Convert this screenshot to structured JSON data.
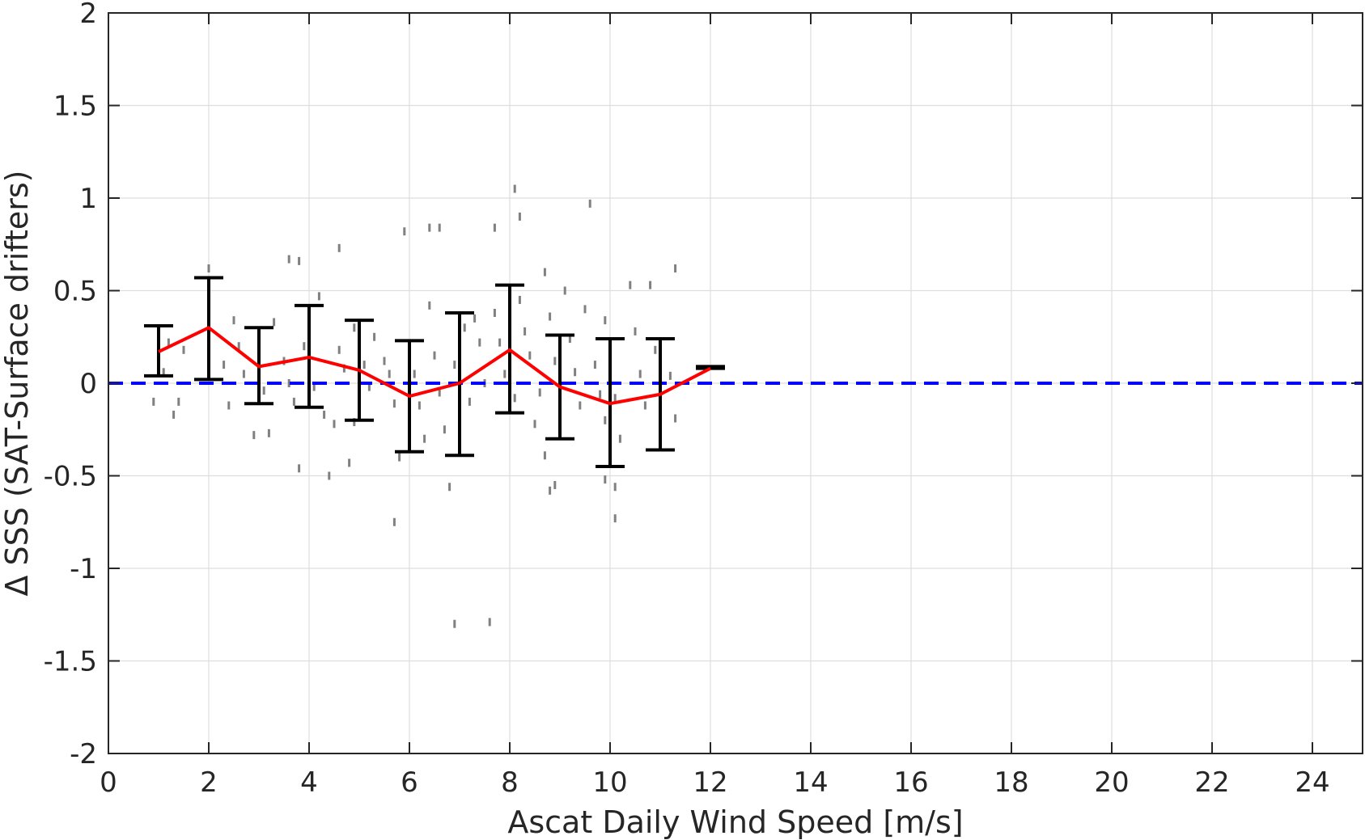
{
  "chart_data": {
    "type": "scatter",
    "title": "",
    "xlabel": "Ascat Daily Wind Speed [m/s]",
    "ylabel": "Δ SSS (SAT-Surface drifters)",
    "xlim": [
      0,
      25
    ],
    "ylim": [
      -2,
      2
    ],
    "xticks": [
      0,
      2,
      4,
      6,
      8,
      10,
      12,
      14,
      16,
      18,
      20,
      22,
      24
    ],
    "xtick_labels": [
      "0",
      "2",
      "4",
      "6",
      "8",
      "10",
      "12",
      "14",
      "16",
      "18",
      "20",
      "22",
      "24"
    ],
    "yticks": [
      -2,
      -1.5,
      -1,
      -0.5,
      0,
      0.5,
      1,
      1.5,
      2
    ],
    "ytick_labels": [
      "-2",
      "-1.5",
      "-1",
      "-0.5",
      "0",
      "0.5",
      "1",
      "1.5",
      "2"
    ],
    "grid": true,
    "legend": "none",
    "colors": {
      "scatter": "#808080",
      "mean_line": "#ff0000",
      "error_bars": "#000000",
      "zero_line": "#0000ff",
      "grid": "#dedede",
      "axes": "#262626"
    },
    "reference_line": {
      "y": 0,
      "style": "dashed"
    },
    "binned_mean": {
      "x": [
        1,
        2,
        3,
        4,
        5,
        6,
        7,
        8,
        9,
        10,
        11,
        12
      ],
      "y": [
        0.17,
        0.3,
        0.09,
        0.14,
        0.07,
        -0.07,
        0.0,
        0.18,
        -0.02,
        -0.11,
        -0.06,
        0.08
      ],
      "lower": [
        0.04,
        0.02,
        -0.11,
        -0.13,
        -0.2,
        -0.37,
        -0.39,
        -0.16,
        -0.3,
        -0.45,
        -0.36,
        0.08
      ],
      "upper": [
        0.31,
        0.57,
        0.3,
        0.42,
        0.34,
        0.23,
        0.38,
        0.53,
        0.26,
        0.24,
        0.24,
        0.09
      ]
    },
    "scatter_points": [
      [
        0.9,
        -0.1
      ],
      [
        1.3,
        -0.17
      ],
      [
        1.4,
        -0.1
      ],
      [
        1.5,
        0.18
      ],
      [
        1.2,
        0.22
      ],
      [
        1.1,
        0.06
      ],
      [
        2.0,
        0.62
      ],
      [
        2.5,
        0.34
      ],
      [
        2.6,
        0.2
      ],
      [
        2.4,
        -0.12
      ],
      [
        2.3,
        0.1
      ],
      [
        2.7,
        0.05
      ],
      [
        3.0,
        0.24
      ],
      [
        3.1,
        -0.04
      ],
      [
        3.2,
        -0.27
      ],
      [
        2.9,
        -0.28
      ],
      [
        3.3,
        0.33
      ],
      [
        3.5,
        0.12
      ],
      [
        3.6,
        0.0
      ],
      [
        3.7,
        -0.1
      ],
      [
        3.6,
        0.67
      ],
      [
        3.8,
        0.66
      ],
      [
        4.2,
        0.47
      ],
      [
        4.0,
        0.38
      ],
      [
        3.9,
        0.2
      ],
      [
        4.1,
        -0.02
      ],
      [
        4.3,
        -0.17
      ],
      [
        4.5,
        -0.22
      ],
      [
        3.8,
        -0.46
      ],
      [
        4.4,
        -0.5
      ],
      [
        4.6,
        0.18
      ],
      [
        4.7,
        0.08
      ],
      [
        4.6,
        0.73
      ],
      [
        4.9,
        0.3
      ],
      [
        5.1,
        0.1
      ],
      [
        5.2,
        -0.02
      ],
      [
        4.9,
        -0.21
      ],
      [
        4.8,
        -0.43
      ],
      [
        5.3,
        0.25
      ],
      [
        5.5,
        0.12
      ],
      [
        5.6,
        0.05
      ],
      [
        5.7,
        -0.11
      ],
      [
        5.7,
        -0.75
      ],
      [
        5.9,
        0.82
      ],
      [
        6.0,
        0.2
      ],
      [
        6.1,
        0.05
      ],
      [
        6.2,
        -0.12
      ],
      [
        6.3,
        -0.3
      ],
      [
        5.8,
        -0.4
      ],
      [
        6.4,
        0.42
      ],
      [
        6.5,
        0.15
      ],
      [
        6.6,
        -0.05
      ],
      [
        6.7,
        -0.25
      ],
      [
        6.4,
        0.84
      ],
      [
        6.6,
        0.84
      ],
      [
        6.8,
        -0.56
      ],
      [
        6.9,
        0.1
      ],
      [
        7.1,
        0.3
      ],
      [
        7.2,
        -0.1
      ],
      [
        7.3,
        0.35
      ],
      [
        7.4,
        0.22
      ],
      [
        6.9,
        -1.3
      ],
      [
        7.6,
        -1.29
      ],
      [
        7.5,
        0.0
      ],
      [
        7.7,
        0.38
      ],
      [
        7.8,
        0.22
      ],
      [
        7.9,
        0.05
      ],
      [
        8.1,
        -0.08
      ],
      [
        8.2,
        0.45
      ],
      [
        8.3,
        0.28
      ],
      [
        8.4,
        0.15
      ],
      [
        7.7,
        0.84
      ],
      [
        8.1,
        1.05
      ],
      [
        8.2,
        0.9
      ],
      [
        8.7,
        0.6
      ],
      [
        8.8,
        0.36
      ],
      [
        8.9,
        0.12
      ],
      [
        8.6,
        -0.05
      ],
      [
        8.5,
        -0.22
      ],
      [
        8.7,
        -0.39
      ],
      [
        8.8,
        -0.58
      ],
      [
        8.9,
        -0.55
      ],
      [
        9.1,
        0.5
      ],
      [
        9.2,
        0.24
      ],
      [
        9.3,
        0.06
      ],
      [
        9.4,
        -0.12
      ],
      [
        9.6,
        0.97
      ],
      [
        9.5,
        0.4
      ],
      [
        9.7,
        0.1
      ],
      [
        9.8,
        -0.06
      ],
      [
        9.9,
        -0.2
      ],
      [
        9.9,
        0.34
      ],
      [
        10.0,
        0.1
      ],
      [
        10.1,
        -0.08
      ],
      [
        10.2,
        -0.3
      ],
      [
        9.9,
        -0.52
      ],
      [
        10.1,
        -0.56
      ],
      [
        10.1,
        -0.73
      ],
      [
        10.4,
        0.53
      ],
      [
        10.5,
        0.28
      ],
      [
        10.6,
        0.05
      ],
      [
        10.7,
        -0.12
      ],
      [
        10.8,
        0.53
      ],
      [
        10.9,
        0.18
      ],
      [
        11.0,
        -0.22
      ],
      [
        11.2,
        0.04
      ],
      [
        11.3,
        -0.19
      ],
      [
        11.3,
        0.62
      ]
    ]
  }
}
